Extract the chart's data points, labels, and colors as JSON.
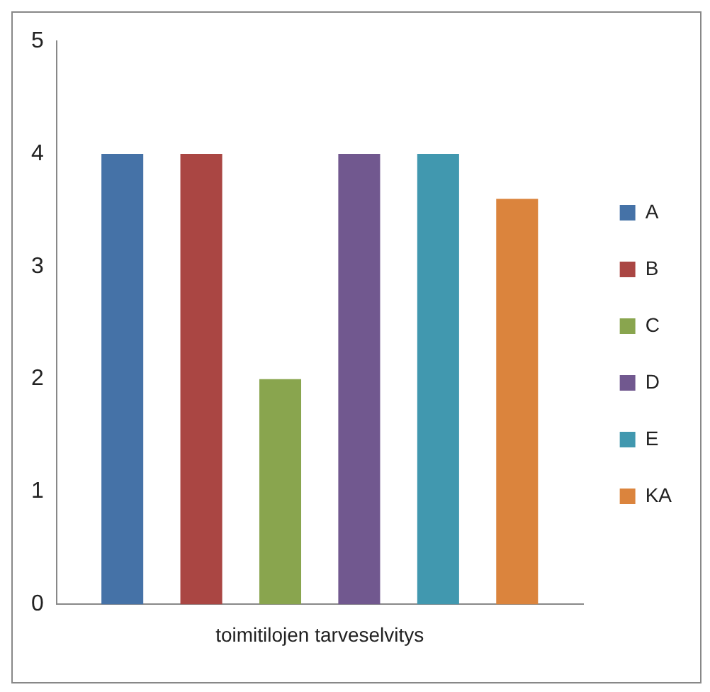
{
  "chart_data": {
    "type": "bar",
    "categories": [
      "toimitilojen tarveselvitys"
    ],
    "series": [
      {
        "name": "A",
        "color": "#4572a7",
        "values": [
          4
        ]
      },
      {
        "name": "B",
        "color": "#aa4643",
        "values": [
          4
        ]
      },
      {
        "name": "C",
        "color": "#89a54e",
        "values": [
          2
        ]
      },
      {
        "name": "D",
        "color": "#71588f",
        "values": [
          4
        ]
      },
      {
        "name": "E",
        "color": "#4198af",
        "values": [
          4
        ]
      },
      {
        "name": "KA",
        "color": "#db843d",
        "values": [
          3.6
        ]
      }
    ],
    "ylim": [
      0,
      5
    ],
    "yticks": [
      0,
      1,
      2,
      3,
      4,
      5
    ],
    "grid": false,
    "legend": "right"
  }
}
